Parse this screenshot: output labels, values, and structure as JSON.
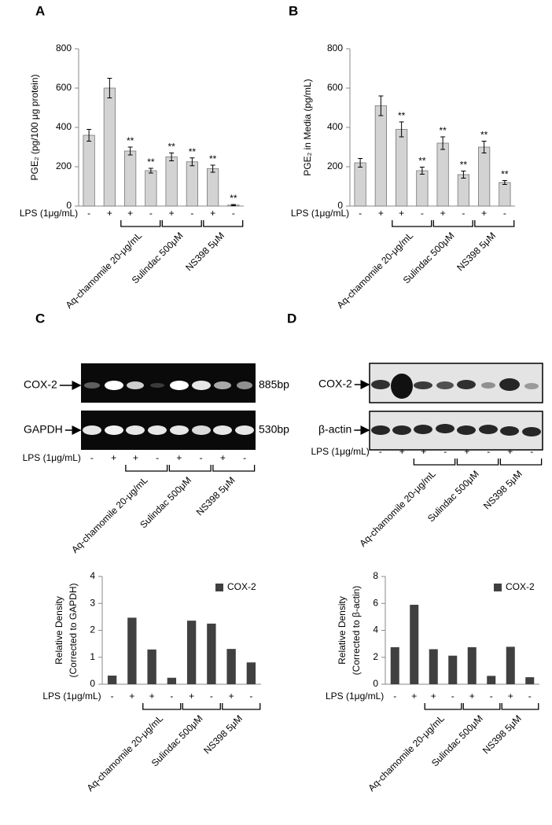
{
  "chart_data": [
    {
      "panel": "A",
      "type": "bar",
      "y_label": "PGE₂ (pg/100 μg protein)",
      "x_label": "LPS (1μg/mL)",
      "categories": [
        "-",
        "+",
        "+",
        "-",
        "+",
        "-",
        "+",
        "-"
      ],
      "groups": [
        "Aq-chamomile 20-μg/mL",
        "Sulindac 500μM",
        "NS398 5μM"
      ],
      "values": [
        360,
        600,
        280,
        180,
        250,
        225,
        190,
        5
      ],
      "errors": [
        30,
        50,
        20,
        12,
        20,
        20,
        18,
        3
      ],
      "significance": [
        null,
        null,
        "**",
        "**",
        "**",
        "**",
        "**",
        "**"
      ],
      "color": "#d3d3d3",
      "ylim": [
        0,
        800
      ],
      "yticks": [
        0,
        200,
        400,
        600,
        800
      ]
    },
    {
      "panel": "B",
      "type": "bar",
      "y_label": "PGE₂ in Media (pg/mL)",
      "x_label": "LPS (1μg/mL)",
      "categories": [
        "-",
        "+",
        "+",
        "-",
        "+",
        "-",
        "+",
        "-"
      ],
      "groups": [
        "Aq-chamomile 20-μg/mL",
        "Sulindac 500μM",
        "NS398 5μM"
      ],
      "values": [
        220,
        510,
        390,
        180,
        320,
        160,
        300,
        120
      ],
      "errors": [
        22,
        50,
        38,
        18,
        32,
        18,
        30,
        10
      ],
      "significance": [
        null,
        null,
        "**",
        "**",
        "**",
        "**",
        "**",
        "**"
      ],
      "color": "#d3d3d3",
      "ylim": [
        0,
        800
      ],
      "yticks": [
        0,
        200,
        400,
        600,
        800
      ]
    },
    {
      "type": "bar",
      "y_label": [
        "Relative Density",
        "(Corrected to GAPDH)"
      ],
      "x_label": "LPS (1μg/mL)",
      "categories": [
        "-",
        "+",
        "+",
        "-",
        "+",
        "-",
        "+",
        "-"
      ],
      "groups": [
        "Aq-chamomile 20-μg/mL",
        "Sulindac 500μM",
        "NS398 5μM"
      ],
      "series": [
        {
          "name": "COX-2",
          "color": "#404040",
          "values": [
            0.32,
            2.47,
            1.29,
            0.24,
            2.36,
            2.25,
            1.31,
            0.81
          ]
        }
      ],
      "legend": "top-right",
      "ylim": [
        0,
        4
      ],
      "yticks": [
        0,
        1,
        2,
        3,
        4
      ]
    },
    {
      "type": "bar",
      "y_label": [
        "Relative Density",
        "(Corrected to β-actin)"
      ],
      "x_label": "LPS (1μg/mL)",
      "categories": [
        "-",
        "+",
        "+",
        "-",
        "+",
        "-",
        "+",
        "-"
      ],
      "groups": [
        "Aq-chamomile 20-μg/mL",
        "Sulindac 500μM",
        "NS398 5μM"
      ],
      "series": [
        {
          "name": "COX-2",
          "color": "#404040",
          "values": [
            2.75,
            5.9,
            2.6,
            2.12,
            2.75,
            0.62,
            2.78,
            0.52
          ]
        }
      ],
      "legend": "top-right",
      "ylim": [
        0,
        8
      ],
      "yticks": [
        0,
        2,
        4,
        6,
        8
      ]
    }
  ],
  "blots": [
    {
      "panel": "C",
      "rows": [
        {
          "name": "COX-2",
          "size": "885bp"
        },
        {
          "name": "GAPDH",
          "size": "530bp"
        }
      ],
      "x_label": "LPS (1μg/mL)",
      "categories": [
        "-",
        "+",
        "+",
        "-",
        "+",
        "-",
        "+",
        "-"
      ],
      "groups": [
        "Aq-chamomile 20-μg/mL",
        "Sulindac 500μM",
        "NS398 5μM"
      ]
    },
    {
      "panel": "D",
      "rows": [
        {
          "name": "COX-2"
        },
        {
          "name": "β-actin"
        }
      ],
      "x_label": "LPS (1μg/mL)",
      "categories": [
        "-",
        "+",
        "+",
        "-",
        "+",
        "-",
        "+",
        "-"
      ],
      "groups": [
        "Aq-chamomile 20-μg/mL",
        "Sulindac 500μM",
        "NS398 5μM"
      ]
    }
  ]
}
